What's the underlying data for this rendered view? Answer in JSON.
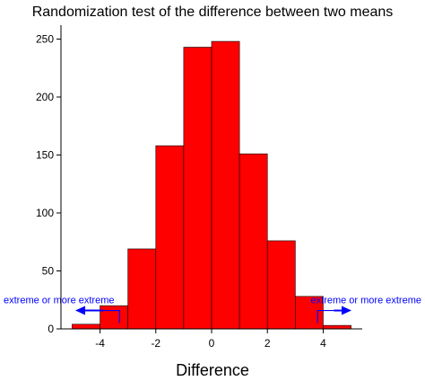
{
  "chart_data": {
    "type": "bar",
    "title": "Randomization test of the difference between two means",
    "xlabel": "Difference",
    "ylabel": "",
    "bins": [
      {
        "x0": -5,
        "x1": -4,
        "count": 4
      },
      {
        "x0": -4,
        "x1": -3,
        "count": 20
      },
      {
        "x0": -3,
        "x1": -2,
        "count": 69
      },
      {
        "x0": -2,
        "x1": -1,
        "count": 158
      },
      {
        "x0": -1,
        "x1": 0,
        "count": 243
      },
      {
        "x0": 0,
        "x1": 1,
        "count": 248
      },
      {
        "x0": 1,
        "x1": 2,
        "count": 151
      },
      {
        "x0": 2,
        "x1": 3,
        "count": 76
      },
      {
        "x0": 3,
        "x1": 4,
        "count": 28
      },
      {
        "x0": 4,
        "x1": 5,
        "count": 3
      }
    ],
    "xticks": [
      -4,
      -2,
      0,
      2,
      4
    ],
    "yticks": [
      0,
      50,
      100,
      150,
      200,
      250
    ],
    "xlim": [
      -5.4,
      5.4
    ],
    "ylim": [
      0,
      262
    ],
    "bar_color": "#ff0000",
    "annotations": [
      {
        "text": "extreme or more extreme",
        "side": "left",
        "x": -3.3,
        "y": 5,
        "color": "#0000ff"
      },
      {
        "text": "extreme or more extreme",
        "side": "right",
        "x": 3.8,
        "y": 5,
        "color": "#0000ff"
      }
    ]
  }
}
